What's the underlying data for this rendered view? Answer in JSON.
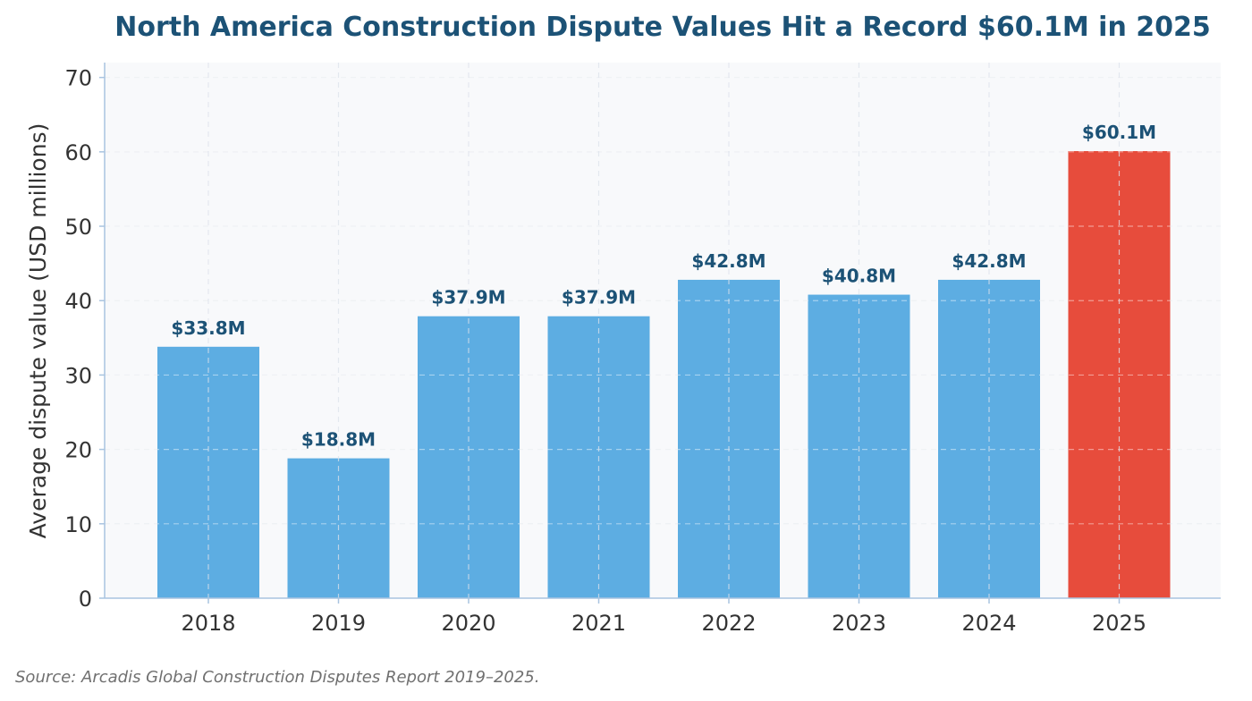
{
  "chart_data": {
    "type": "bar",
    "title": "North America Construction Dispute Values Hit a Record $60.1M in 2025",
    "xlabel": "",
    "ylabel": "Average dispute value (USD millions)",
    "categories": [
      "2018",
      "2019",
      "2020",
      "2021",
      "2022",
      "2023",
      "2024",
      "2025"
    ],
    "values": [
      33.8,
      18.8,
      37.9,
      37.9,
      42.8,
      40.8,
      42.8,
      60.1
    ],
    "data_labels": [
      "$33.8M",
      "$18.8M",
      "$37.9M",
      "$37.9M",
      "$42.8M",
      "$40.8M",
      "$42.8M",
      "$60.1M"
    ],
    "ylim": [
      0,
      72
    ],
    "yticks": [
      0,
      10,
      20,
      30,
      40,
      50,
      60,
      70
    ],
    "grid": true,
    "highlight_index": 7,
    "colors": {
      "bar": "#5dade2",
      "highlight": "#e74c3c",
      "title": "#1c5276",
      "label": "#1c5276",
      "plot_background": "#f8f9fb",
      "axis": "#a9c4e0"
    },
    "source": "Source: Arcadis Global Construction Disputes Report 2019–2025."
  }
}
